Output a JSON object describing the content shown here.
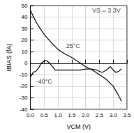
{
  "chart_data": {
    "type": "line",
    "x_label": "VCM (V)",
    "y_label": "IBIAS (fA)",
    "xlim": [
      0,
      3.5
    ],
    "xticks": [
      {
        "value": 0,
        "label": "0.0"
      },
      0.5,
      {
        "value": 1,
        "label": "1.0"
      },
      1.5,
      {
        "value": 2,
        "label": "2.0"
      },
      2.5,
      {
        "value": 3,
        "label": "3.0"
      },
      3.5
    ],
    "ylim": [
      -40,
      50
    ],
    "yticks": [
      -40,
      -30,
      -20,
      -10,
      0,
      10,
      20,
      30,
      40,
      50
    ],
    "grid": true,
    "series": [
      {
        "name": "25°C",
        "color": "#000000",
        "x": [
          0,
          0.1,
          0.25,
          0.5,
          0.75,
          1.0,
          1.25,
          1.5,
          1.75,
          2.0,
          2.25,
          2.5,
          2.75,
          3.0,
          3.15,
          3.3
        ],
        "values": [
          46,
          41,
          34,
          25,
          18,
          12,
          8,
          5,
          1,
          -3,
          -6,
          -10,
          -14,
          -20,
          -26,
          -33
        ]
      },
      {
        "name": "-40°C",
        "color": "#000000",
        "x": [
          0,
          0.1,
          0.2,
          0.3,
          0.4,
          0.5,
          0.6,
          0.7,
          0.8,
          0.9,
          1.0,
          1.2,
          1.5,
          1.8,
          2.0,
          2.2,
          2.4,
          2.6,
          2.75,
          2.9,
          3.0,
          3.1,
          3.2,
          3.3
        ],
        "values": [
          -12,
          -8,
          -7,
          -4,
          0,
          2,
          2,
          0,
          -3,
          -6,
          -6,
          -6,
          -6,
          -6,
          -5,
          -5,
          -6,
          -8,
          -6,
          -3,
          -6,
          -8,
          -7,
          -5
        ]
      }
    ],
    "annotations": [
      {
        "text": "VS = 3.3V",
        "x": 2.75,
        "y": 46
      },
      {
        "text": "25°C",
        "x": 1.55,
        "y": 15
      },
      {
        "text": "-40°C",
        "x": 0.5,
        "y": -16
      }
    ]
  }
}
